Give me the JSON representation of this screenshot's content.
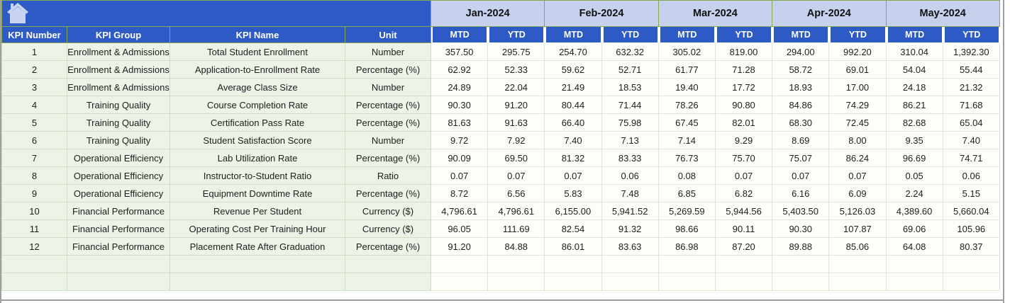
{
  "table": {
    "left_headers": [
      "KPI Number",
      "KPI Group",
      "KPI Name",
      "Unit"
    ],
    "months": [
      "Jan-2024",
      "Feb-2024",
      "Mar-2024",
      "Apr-2024",
      "May-2024"
    ],
    "sub_headers": [
      "MTD",
      "YTD"
    ],
    "rows": [
      {
        "num": "1",
        "group": "Enrollment & Admissions",
        "name": "Total Student Enrollment",
        "unit": "Number",
        "values": [
          "357.50",
          "295.75",
          "254.70",
          "632.32",
          "305.02",
          "819.00",
          "294.00",
          "992.20",
          "310.04",
          "1,392.30"
        ]
      },
      {
        "num": "2",
        "group": "Enrollment & Admissions",
        "name": "Application-to-Enrollment Rate",
        "unit": "Percentage (%)",
        "values": [
          "62.92",
          "52.33",
          "59.62",
          "52.71",
          "61.77",
          "71.28",
          "58.72",
          "69.01",
          "54.04",
          "55.44"
        ]
      },
      {
        "num": "3",
        "group": "Enrollment & Admissions",
        "name": "Average Class Size",
        "unit": "Number",
        "values": [
          "24.89",
          "22.04",
          "21.49",
          "18.53",
          "19.40",
          "17.72",
          "18.93",
          "17.00",
          "24.18",
          "21.32"
        ]
      },
      {
        "num": "4",
        "group": "Training Quality",
        "name": "Course Completion Rate",
        "unit": "Percentage (%)",
        "values": [
          "90.30",
          "91.20",
          "80.44",
          "71.44",
          "78.26",
          "90.80",
          "84.86",
          "74.29",
          "86.21",
          "71.68"
        ]
      },
      {
        "num": "5",
        "group": "Training Quality",
        "name": "Certification Pass Rate",
        "unit": "Percentage (%)",
        "values": [
          "81.63",
          "91.63",
          "66.40",
          "75.98",
          "67.45",
          "82.01",
          "68.30",
          "72.45",
          "82.68",
          "65.04"
        ]
      },
      {
        "num": "6",
        "group": "Training Quality",
        "name": "Student Satisfaction Score",
        "unit": "Number",
        "values": [
          "9.72",
          "7.92",
          "7.40",
          "7.13",
          "7.14",
          "9.29",
          "8.69",
          "8.00",
          "9.35",
          "7.40"
        ]
      },
      {
        "num": "7",
        "group": "Operational Efficiency",
        "name": "Lab Utilization Rate",
        "unit": "Percentage (%)",
        "values": [
          "90.09",
          "69.50",
          "81.32",
          "83.33",
          "76.73",
          "75.70",
          "75.07",
          "86.24",
          "96.69",
          "74.71"
        ]
      },
      {
        "num": "8",
        "group": "Operational Efficiency",
        "name": "Instructor-to-Student Ratio",
        "unit": "Ratio",
        "values": [
          "0.07",
          "0.07",
          "0.07",
          "0.06",
          "0.08",
          "0.07",
          "0.07",
          "0.07",
          "0.05",
          "0.06"
        ]
      },
      {
        "num": "9",
        "group": "Operational Efficiency",
        "name": "Equipment Downtime Rate",
        "unit": "Percentage (%)",
        "values": [
          "8.72",
          "6.56",
          "5.83",
          "7.48",
          "6.85",
          "6.82",
          "6.16",
          "6.09",
          "2.24",
          "5.15"
        ]
      },
      {
        "num": "10",
        "group": "Financial Performance",
        "name": "Revenue Per Student",
        "unit": "Currency ($)",
        "values": [
          "4,796.61",
          "4,796.61",
          "6,155.00",
          "5,941.52",
          "5,269.59",
          "5,944.56",
          "5,403.50",
          "5,126.03",
          "4,389.60",
          "5,660.04"
        ]
      },
      {
        "num": "11",
        "group": "Financial Performance",
        "name": "Operating Cost Per Training Hour",
        "unit": "Currency ($)",
        "values": [
          "96.05",
          "111.69",
          "82.54",
          "91.32",
          "98.66",
          "90.11",
          "90.30",
          "107.87",
          "69.06",
          "105.96"
        ]
      },
      {
        "num": "12",
        "group": "Financial Performance",
        "name": "Placement Rate After Graduation",
        "unit": "Percentage (%)",
        "values": [
          "91.20",
          "84.88",
          "86.01",
          "83.63",
          "86.98",
          "87.20",
          "89.88",
          "85.06",
          "64.08",
          "80.37"
        ]
      }
    ],
    "empty_row_count": 2
  },
  "icons": {
    "home": "home-icon"
  },
  "colors": {
    "header_blue": "#2d5ac4",
    "month_header_bg": "#c6d1ee",
    "grid_green_border": "#84a653",
    "left_cell_bg": "#edf3e7",
    "data_cell_bg": "#fdfdfa",
    "icon_tint": "#c9d4f2"
  }
}
